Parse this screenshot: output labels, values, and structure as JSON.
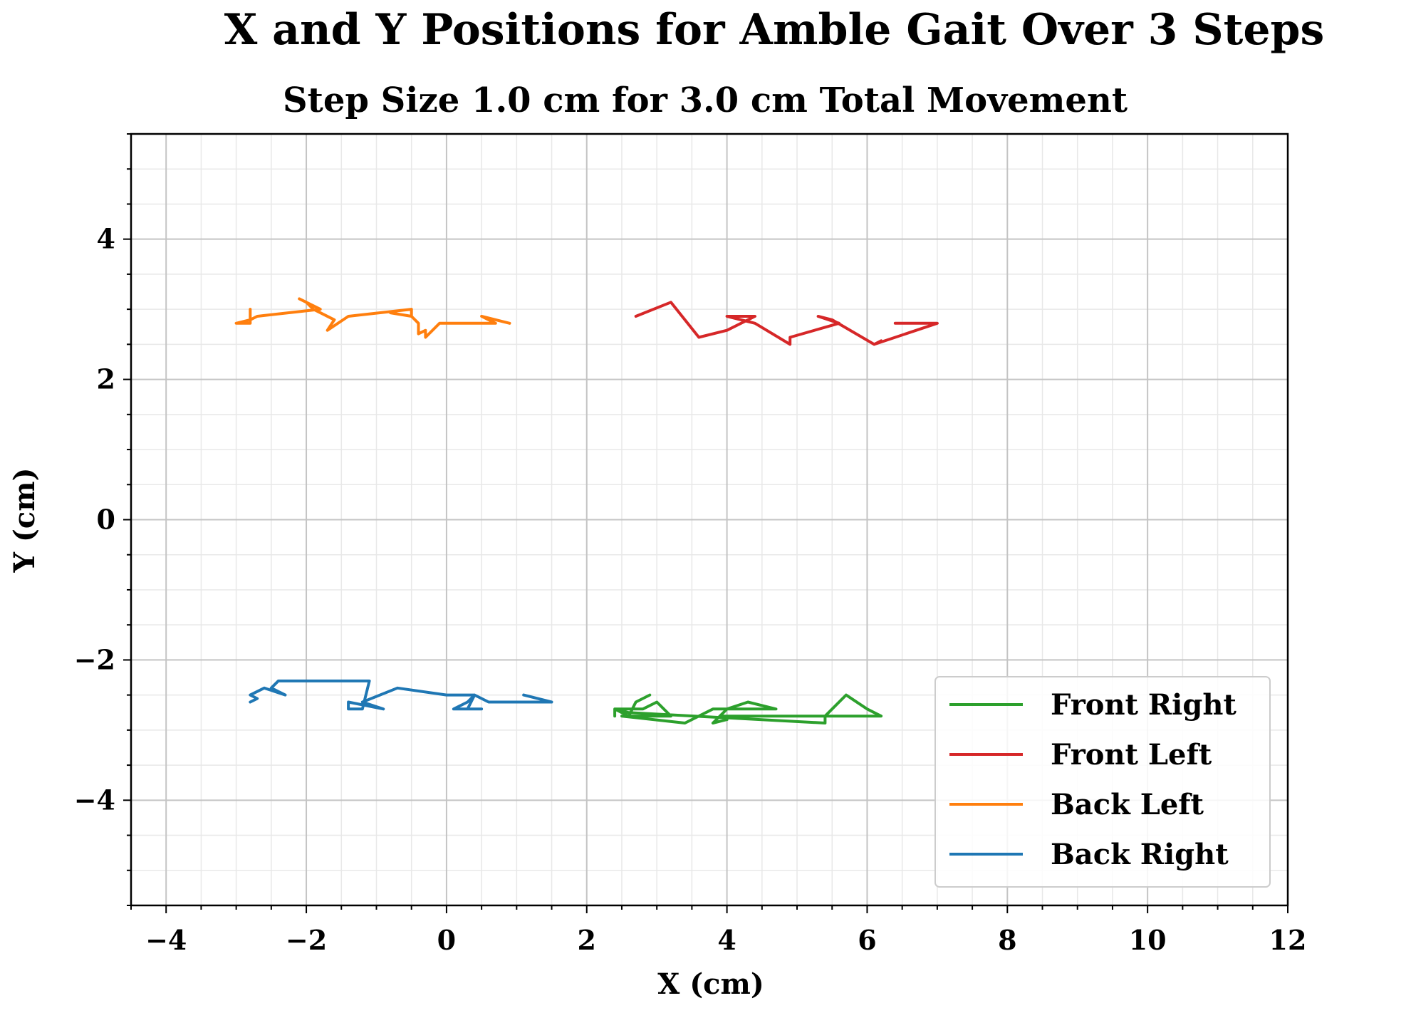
{
  "chart_data": {
    "type": "line",
    "title": "X and Y Positions for Amble Gait Over 3 Steps",
    "subtitle": "Step Size 1.0 cm for 3.0 cm Total Movement",
    "xlabel": "X (cm)",
    "ylabel": "Y (cm)",
    "xlim": [
      -4.5,
      12
    ],
    "ylim": [
      -5.5,
      5.5
    ],
    "xticks": [
      -4,
      -2,
      0,
      2,
      4,
      6,
      8,
      10,
      12
    ],
    "yticks": [
      -4,
      -2,
      0,
      2,
      4
    ],
    "xtick_labels": [
      "−4",
      "−2",
      "0",
      "2",
      "4",
      "6",
      "8",
      "10",
      "12"
    ],
    "ytick_labels": [
      "−4",
      "−2",
      "0",
      "2",
      "4"
    ],
    "minor_grid_step": 0.5,
    "grid": true,
    "legend_position": "lower-right",
    "series": [
      {
        "name": "Front Right",
        "color": "#2ca02c",
        "x": [
          2.9,
          2.7,
          2.6,
          2.4,
          2.8,
          3.0,
          3.2,
          2.5,
          3.4,
          3.8,
          4.7,
          4.3,
          4.0,
          3.8,
          4.0,
          3.9,
          5.4,
          5.7,
          6.0,
          6.2,
          6.0,
          5.4,
          5.4,
          2.6,
          2.4,
          2.4
        ],
        "y": [
          -2.5,
          -2.6,
          -2.8,
          -2.7,
          -2.7,
          -2.6,
          -2.8,
          -2.8,
          -2.9,
          -2.7,
          -2.7,
          -2.6,
          -2.7,
          -2.9,
          -2.85,
          -2.8,
          -2.8,
          -2.5,
          -2.7,
          -2.8,
          -2.8,
          -2.8,
          -2.9,
          -2.75,
          -2.7,
          -2.8
        ]
      },
      {
        "name": "Front Left",
        "color": "#d62728",
        "x": [
          2.7,
          3.2,
          3.6,
          4.0,
          4.4,
          4.0,
          4.4,
          4.9,
          4.9,
          5.6,
          5.3,
          5.5,
          6.1,
          6.2,
          6.1,
          7.0,
          6.4
        ],
        "y": [
          2.9,
          3.1,
          2.6,
          2.7,
          2.9,
          2.9,
          2.8,
          2.5,
          2.6,
          2.8,
          2.9,
          2.85,
          2.5,
          2.55,
          2.5,
          2.8,
          2.8
        ]
      },
      {
        "name": "Back Left",
        "color": "#ff7f0e",
        "x": [
          0.9,
          0.5,
          0.7,
          -0.1,
          -0.3,
          -0.3,
          -0.4,
          -0.4,
          -0.5,
          -0.8,
          -0.5,
          -0.5,
          -1.4,
          -1.7,
          -1.6,
          -1.9,
          -2.0,
          -2.1,
          -1.8,
          -2.7,
          -2.8,
          -3.0,
          -2.8,
          -2.8
        ],
        "y": [
          2.8,
          2.9,
          2.8,
          2.8,
          2.6,
          2.7,
          2.65,
          2.8,
          2.9,
          2.95,
          2.9,
          3.0,
          2.9,
          2.7,
          2.85,
          3.0,
          3.1,
          3.15,
          3.0,
          2.9,
          2.85,
          2.8,
          2.8,
          3.0
        ]
      },
      {
        "name": "Back Right",
        "color": "#1f77b4",
        "x": [
          1.5,
          1.1,
          1.5,
          0.6,
          0.4,
          0.3,
          0.5,
          0.1,
          0.3,
          0.4,
          0.0,
          -0.7,
          -1.2,
          -0.9,
          -1.4,
          -1.4,
          -1.2,
          -1.1,
          -1.3,
          -1.4,
          -2.4,
          -2.5,
          -2.3,
          -2.6,
          -2.8,
          -2.7,
          -2.8
        ],
        "y": [
          -2.6,
          -2.5,
          -2.6,
          -2.6,
          -2.5,
          -2.7,
          -2.7,
          -2.7,
          -2.6,
          -2.5,
          -2.5,
          -2.4,
          -2.6,
          -2.7,
          -2.6,
          -2.7,
          -2.7,
          -2.3,
          -2.3,
          -2.3,
          -2.3,
          -2.4,
          -2.5,
          -2.4,
          -2.5,
          -2.55,
          -2.6
        ]
      }
    ]
  }
}
